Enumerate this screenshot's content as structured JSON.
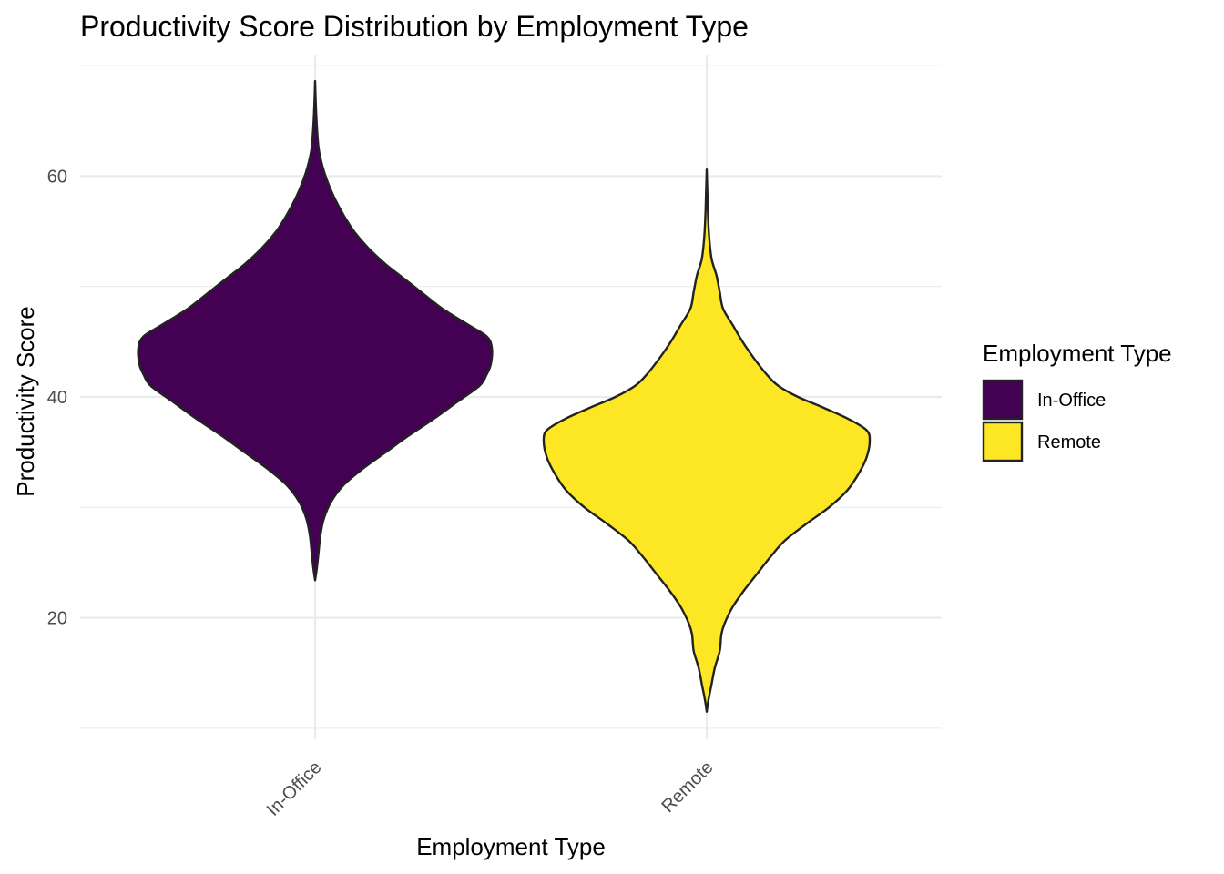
{
  "chart_data": {
    "type": "violin",
    "title": "Productivity Score Distribution by Employment Type",
    "xlabel": "Employment Type",
    "ylabel": "Productivity Score",
    "categories": [
      "In-Office",
      "Remote"
    ],
    "ylim": [
      9,
      71
    ],
    "yticks": [
      20,
      40,
      60
    ],
    "yticks_labels": [
      "20",
      "40",
      "60"
    ],
    "grid": true,
    "legend": {
      "title": "Employment Type",
      "position": "right",
      "entries": [
        "In-Office",
        "Remote"
      ]
    },
    "colors": {
      "In-Office": "#440154",
      "Remote": "#fde725",
      "outline": "#222222"
    },
    "series": [
      {
        "category": "In-Office",
        "min": 23.4,
        "max": 68.6,
        "density_profile": [
          [
            23.4,
            0.0
          ],
          [
            24.5,
            0.01
          ],
          [
            26.0,
            0.02
          ],
          [
            27.5,
            0.03
          ],
          [
            29.0,
            0.05
          ],
          [
            30.5,
            0.09
          ],
          [
            32.0,
            0.16
          ],
          [
            33.5,
            0.27
          ],
          [
            35.0,
            0.4
          ],
          [
            36.5,
            0.53
          ],
          [
            38.0,
            0.67
          ],
          [
            39.5,
            0.8
          ],
          [
            41.0,
            0.93
          ],
          [
            42.0,
            0.97
          ],
          [
            43.0,
            0.995
          ],
          [
            44.5,
            1.0
          ],
          [
            45.5,
            0.97
          ],
          [
            46.5,
            0.87
          ],
          [
            48.0,
            0.72
          ],
          [
            49.5,
            0.6
          ],
          [
            51.0,
            0.48
          ],
          [
            52.0,
            0.4
          ],
          [
            53.5,
            0.3
          ],
          [
            55.0,
            0.22
          ],
          [
            56.5,
            0.16
          ],
          [
            58.0,
            0.11
          ],
          [
            59.5,
            0.07
          ],
          [
            61.0,
            0.04
          ],
          [
            62.5,
            0.02
          ],
          [
            64.5,
            0.01
          ],
          [
            66.5,
            0.004
          ],
          [
            68.6,
            0.0
          ]
        ]
      },
      {
        "category": "Remote",
        "min": 11.5,
        "max": 60.6,
        "density_profile": [
          [
            11.5,
            0.0
          ],
          [
            12.5,
            0.01
          ],
          [
            14.0,
            0.03
          ],
          [
            15.5,
            0.05
          ],
          [
            17.0,
            0.08
          ],
          [
            18.5,
            0.09
          ],
          [
            19.5,
            0.11
          ],
          [
            21.0,
            0.16
          ],
          [
            22.5,
            0.23
          ],
          [
            24.0,
            0.31
          ],
          [
            25.5,
            0.39
          ],
          [
            27.0,
            0.48
          ],
          [
            28.5,
            0.61
          ],
          [
            30.0,
            0.75
          ],
          [
            31.5,
            0.86
          ],
          [
            33.0,
            0.93
          ],
          [
            34.5,
            0.98
          ],
          [
            36.0,
            1.0
          ],
          [
            37.0,
            0.98
          ],
          [
            38.0,
            0.87
          ],
          [
            39.0,
            0.72
          ],
          [
            40.0,
            0.56
          ],
          [
            41.0,
            0.44
          ],
          [
            42.0,
            0.37
          ],
          [
            43.5,
            0.29
          ],
          [
            45.0,
            0.22
          ],
          [
            46.5,
            0.16
          ],
          [
            48.0,
            0.1
          ],
          [
            49.5,
            0.08
          ],
          [
            51.0,
            0.06
          ],
          [
            52.5,
            0.03
          ],
          [
            54.5,
            0.015
          ],
          [
            56.5,
            0.008
          ],
          [
            58.5,
            0.004
          ],
          [
            60.6,
            0.0
          ]
        ]
      }
    ]
  }
}
